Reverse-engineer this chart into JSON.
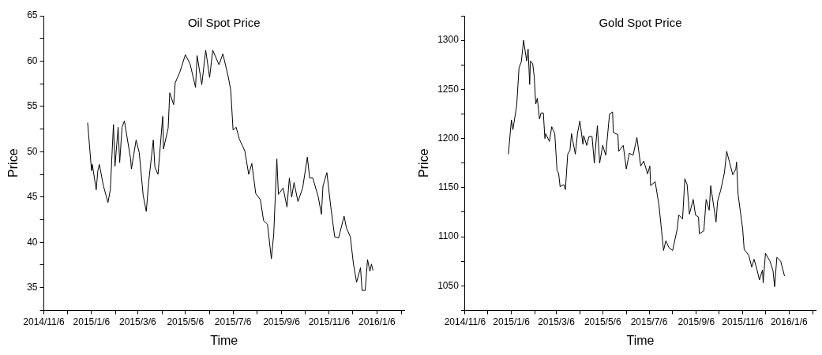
{
  "chart_data": [
    {
      "type": "line",
      "title": "Oil Spot Price",
      "xlabel": "Time",
      "ylabel": "Price",
      "grid": false,
      "marker": "none",
      "line_style": "solid",
      "xlim": [
        "2014-11-06",
        "2016-02-10"
      ],
      "xticks": [
        {
          "value": "2014-11-06",
          "label": "2014/11/6"
        },
        {
          "value": "2014-12-06",
          "label": null
        },
        {
          "value": "2015-01-06",
          "label": "2015/1/6"
        },
        {
          "value": "2015-02-06",
          "label": null
        },
        {
          "value": "2015-03-06",
          "label": "2015/3/6"
        },
        {
          "value": "2015-04-06",
          "label": null
        },
        {
          "value": "2015-05-06",
          "label": "2015/5/6"
        },
        {
          "value": "2015-06-06",
          "label": null
        },
        {
          "value": "2015-07-06",
          "label": "2015/7/6"
        },
        {
          "value": "2015-08-06",
          "label": null
        },
        {
          "value": "2015-09-06",
          "label": "2015/9/6"
        },
        {
          "value": "2015-10-06",
          "label": null
        },
        {
          "value": "2015-11-06",
          "label": "2015/11/6"
        },
        {
          "value": "2015-12-06",
          "label": null
        },
        {
          "value": "2016-01-06",
          "label": "2016/1/6"
        },
        {
          "value": "2016-02-06",
          "label": null
        }
      ],
      "ylim": [
        32.5,
        65
      ],
      "yticks": [
        {
          "value": 32.5,
          "label": null
        },
        35,
        {
          "value": 37.5,
          "label": null
        },
        40,
        {
          "value": 42.5,
          "label": null
        },
        45,
        {
          "value": 47.5,
          "label": null
        },
        50,
        {
          "value": 52.5,
          "label": null
        },
        55,
        {
          "value": 57.5,
          "label": null
        },
        60,
        {
          "value": 62.5,
          "label": null
        },
        65
      ],
      "series": [
        {
          "color": "#000000",
          "x": [
            "2015-01-01",
            "2015-01-06",
            "2015-01-07",
            "2015-01-12",
            "2015-01-14",
            "2015-01-16",
            "2015-01-21",
            "2015-01-27",
            "2015-01-30",
            "2015-02-03",
            "2015-02-05",
            "2015-02-09",
            "2015-02-11",
            "2015-02-14",
            "2015-02-17",
            "2015-02-25",
            "2015-02-26",
            "2015-03-04",
            "2015-03-08",
            "2015-03-13",
            "2015-03-17",
            "2015-03-20",
            "2015-03-26",
            "2015-03-28",
            "2015-04-01",
            "2015-04-07",
            "2015-04-08",
            "2015-04-14",
            "2015-04-16",
            "2015-04-21",
            "2015-04-23",
            "2015-04-29",
            "2015-05-06",
            "2015-05-12",
            "2015-05-19",
            "2015-05-21",
            "2015-05-27",
            "2015-06-01",
            "2015-06-06",
            "2015-06-10",
            "2015-06-18",
            "2015-06-23",
            "2015-06-30",
            "2015-07-03",
            "2015-07-06",
            "2015-07-10",
            "2015-07-14",
            "2015-07-21",
            "2015-07-26",
            "2015-07-30",
            "2015-08-04",
            "2015-08-10",
            "2015-08-14",
            "2015-08-19",
            "2015-08-24",
            "2015-08-27",
            "2015-08-31",
            "2015-09-02",
            "2015-09-08",
            "2015-09-13",
            "2015-09-16",
            "2015-09-19",
            "2015-09-22",
            "2015-09-27",
            "2015-10-03",
            "2015-10-09",
            "2015-10-12",
            "2015-10-16",
            "2015-10-23",
            "2015-10-27",
            "2015-10-29",
            "2015-11-03",
            "2015-11-08",
            "2015-11-13",
            "2015-11-18",
            "2015-11-25",
            "2015-11-28",
            "2015-12-03",
            "2015-12-07",
            "2015-12-11",
            "2015-12-16",
            "2015-12-18",
            "2015-12-22",
            "2015-12-25",
            "2015-12-28",
            "2015-12-30",
            "2016-01-01"
          ],
          "values": [
            53.2,
            47.9,
            48.6,
            45.8,
            47.9,
            48.6,
            46.3,
            44.4,
            45.8,
            53.0,
            48.4,
            52.7,
            48.8,
            52.7,
            53.4,
            49.2,
            48.1,
            51.3,
            49.9,
            45.2,
            43.4,
            46.6,
            51.3,
            48.3,
            47.5,
            53.9,
            50.3,
            52.6,
            56.5,
            55.2,
            57.6,
            58.8,
            60.7,
            59.7,
            57.1,
            60.6,
            57.4,
            61.2,
            58.2,
            61.2,
            59.6,
            60.8,
            58.2,
            56.8,
            52.4,
            52.7,
            51.4,
            50.1,
            47.5,
            48.7,
            45.4,
            44.7,
            42.4,
            42.0,
            38.2,
            40.9,
            49.2,
            45.3,
            46.0,
            43.9,
            47.1,
            45.0,
            46.6,
            44.5,
            46.0,
            49.4,
            47.1,
            47.1,
            45.0,
            43.1,
            46.2,
            47.7,
            43.9,
            40.6,
            40.5,
            42.9,
            41.6,
            40.6,
            37.6,
            35.6,
            37.2,
            34.7,
            34.7,
            38.1,
            36.8,
            37.6,
            36.9
          ]
        }
      ]
    },
    {
      "type": "line",
      "title": "Gold Spot Price",
      "xlabel": "Time",
      "ylabel": "Price",
      "grid": false,
      "marker": "none",
      "line_style": "solid",
      "xlim": [
        "2014-11-06",
        "2016-02-10"
      ],
      "xticks": [
        {
          "value": "2014-11-06",
          "label": "2014/11/6"
        },
        {
          "value": "2014-12-06",
          "label": null
        },
        {
          "value": "2015-01-06",
          "label": "2015/1/6"
        },
        {
          "value": "2015-02-06",
          "label": null
        },
        {
          "value": "2015-03-06",
          "label": "2015/3/6"
        },
        {
          "value": "2015-04-06",
          "label": null
        },
        {
          "value": "2015-05-06",
          "label": "2015/5/6"
        },
        {
          "value": "2015-06-06",
          "label": null
        },
        {
          "value": "2015-07-06",
          "label": "2015/7/6"
        },
        {
          "value": "2015-08-06",
          "label": null
        },
        {
          "value": "2015-09-06",
          "label": "2015/9/6"
        },
        {
          "value": "2015-10-06",
          "label": null
        },
        {
          "value": "2015-11-06",
          "label": "2015/11/6"
        },
        {
          "value": "2015-12-06",
          "label": null
        },
        {
          "value": "2016-01-06",
          "label": "2016/1/6"
        },
        {
          "value": "2016-02-06",
          "label": null
        }
      ],
      "ylim": [
        1025,
        1325
      ],
      "yticks": [
        {
          "value": 1025,
          "label": null
        },
        1050,
        {
          "value": 1075,
          "label": null
        },
        1100,
        {
          "value": 1125,
          "label": null
        },
        1150,
        {
          "value": 1175,
          "label": null
        },
        1200,
        {
          "value": 1225,
          "label": null
        },
        1250,
        {
          "value": 1275,
          "label": null
        },
        1300,
        {
          "value": 1325,
          "label": null
        }
      ],
      "series": [
        {
          "color": "#000000",
          "x": [
            "2015-01-02",
            "2015-01-06",
            "2015-01-08",
            "2015-01-13",
            "2015-01-16",
            "2015-01-19",
            "2015-01-22",
            "2015-01-26",
            "2015-01-28",
            "2015-01-30",
            "2015-01-31",
            "2015-02-03",
            "2015-02-05",
            "2015-02-07",
            "2015-02-09",
            "2015-02-12",
            "2015-02-14",
            "2015-02-17",
            "2015-02-19",
            "2015-02-20",
            "2015-02-25",
            "2015-02-28",
            "2015-03-04",
            "2015-03-07",
            "2015-03-09",
            "2015-03-11",
            "2015-03-16",
            "2015-03-18",
            "2015-03-21",
            "2015-03-24",
            "2015-03-26",
            "2015-03-31",
            "2015-04-03",
            "2015-04-06",
            "2015-04-10",
            "2015-04-11",
            "2015-04-15",
            "2015-04-18",
            "2015-04-22",
            "2015-04-25",
            "2015-04-29",
            "2015-05-02",
            "2015-05-06",
            "2015-05-10",
            "2015-05-15",
            "2015-05-19",
            "2015-05-20",
            "2015-05-26",
            "2015-05-27",
            "2015-06-02",
            "2015-06-06",
            "2015-06-10",
            "2015-06-15",
            "2015-06-20",
            "2015-06-25",
            "2015-06-29",
            "2015-07-04",
            "2015-07-07",
            "2015-07-08",
            "2015-07-14",
            "2015-07-19",
            "2015-07-25",
            "2015-07-28",
            "2015-08-01",
            "2015-08-06",
            "2015-08-12",
            "2015-08-14",
            "2015-08-19",
            "2015-08-22",
            "2015-08-25",
            "2015-08-28",
            "2015-09-02",
            "2015-09-05",
            "2015-09-09",
            "2015-09-10",
            "2015-09-16",
            "2015-09-19",
            "2015-09-23",
            "2015-09-25",
            "2015-10-02",
            "2015-10-04",
            "2015-10-08",
            "2015-10-13",
            "2015-10-16",
            "2015-10-20",
            "2015-10-24",
            "2015-10-28",
            "2015-10-29",
            "2015-10-31",
            "2015-11-06",
            "2015-11-08",
            "2015-11-14",
            "2015-11-18",
            "2015-11-21",
            "2015-11-25",
            "2015-11-28",
            "2015-12-02",
            "2015-12-03",
            "2015-12-06",
            "2015-12-12",
            "2015-12-16",
            "2015-12-18",
            "2015-12-21",
            "2015-12-26",
            "2015-12-31"
          ],
          "values": [
            1184,
            1219,
            1209,
            1234,
            1272,
            1278,
            1300,
            1279,
            1291,
            1255,
            1279,
            1276,
            1263,
            1235,
            1241,
            1220,
            1226,
            1226,
            1200,
            1205,
            1197,
            1212,
            1205,
            1167,
            1165,
            1151,
            1153,
            1148,
            1184,
            1188,
            1205,
            1184,
            1206,
            1218,
            1194,
            1203,
            1193,
            1202,
            1202,
            1175,
            1213,
            1175,
            1193,
            1183,
            1225,
            1227,
            1206,
            1204,
            1187,
            1193,
            1169,
            1185,
            1183,
            1201,
            1172,
            1177,
            1164,
            1172,
            1152,
            1156,
            1132,
            1086,
            1096,
            1089,
            1086,
            1108,
            1122,
            1118,
            1159,
            1153,
            1123,
            1138,
            1122,
            1120,
            1103,
            1106,
            1138,
            1127,
            1152,
            1115,
            1136,
            1147,
            1165,
            1187,
            1175,
            1163,
            1169,
            1176,
            1143,
            1108,
            1087,
            1081,
            1069,
            1077,
            1066,
            1056,
            1066,
            1053,
            1083,
            1075,
            1065,
            1049,
            1079,
            1075,
            1060
          ]
        }
      ]
    }
  ]
}
